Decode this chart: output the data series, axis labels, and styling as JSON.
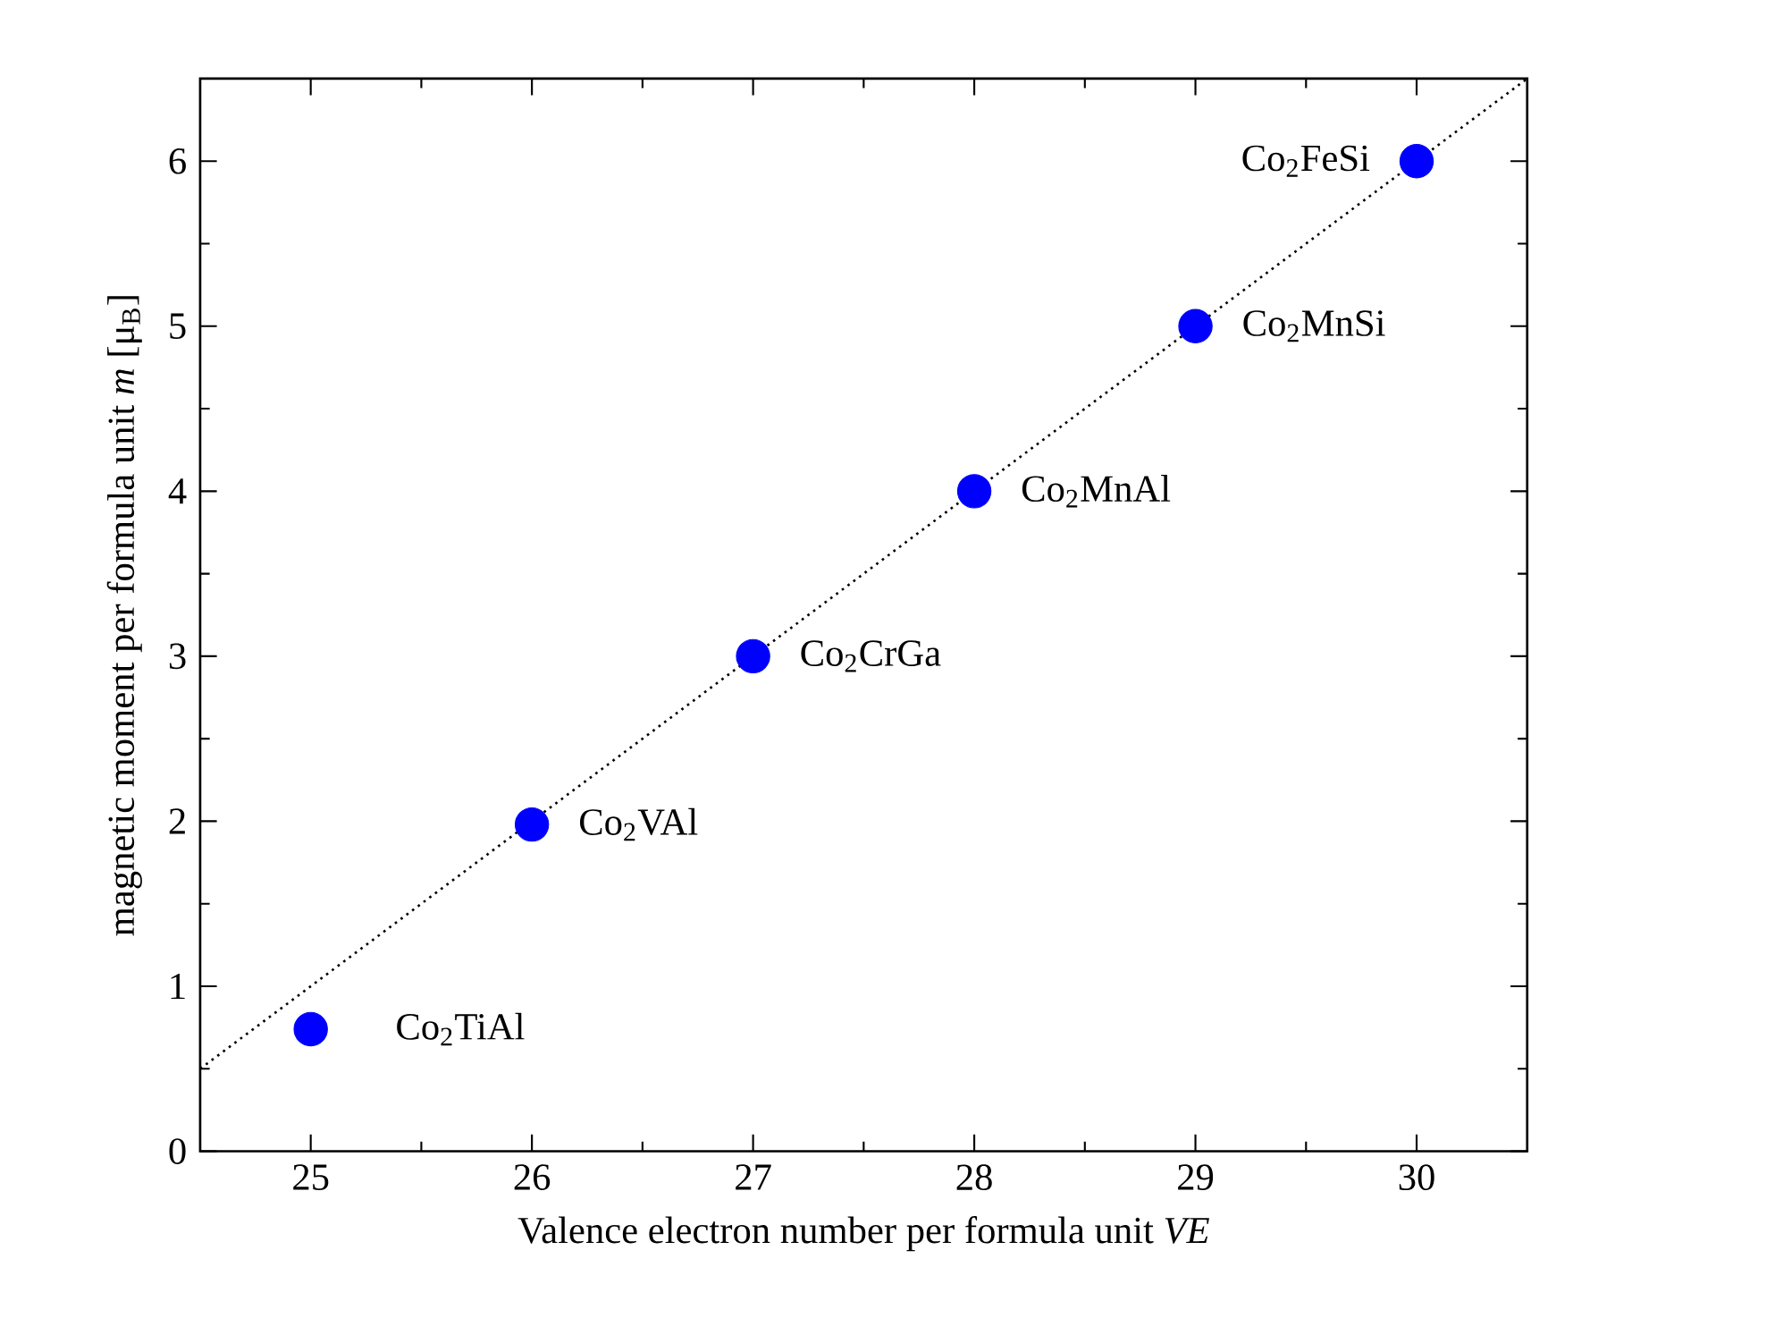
{
  "chart_data": {
    "type": "scatter",
    "xlabel": "Valence electron number per formula unit *VE*",
    "ylabel": "magnetic moment per formula unit *m* [μ$_{B}$]",
    "xlim": [
      24.5,
      30.5
    ],
    "ylim": [
      0,
      6.5
    ],
    "xticks": [
      25,
      26,
      27,
      28,
      29,
      30
    ],
    "yticks": [
      0,
      1,
      2,
      3,
      4,
      5,
      6
    ],
    "grid": false,
    "series": [
      {
        "color": "#0000ff",
        "marker": "circle",
        "x": [
          25,
          26,
          27,
          28,
          29,
          30
        ],
        "values": [
          0.74,
          1.98,
          3,
          4,
          5,
          6
        ]
      },
      {
        "type": "line",
        "color": "#000000",
        "marker": "none",
        "line_style": "dotted",
        "x": [
          24.5,
          30.5
        ],
        "values": [
          0.5,
          6.5
        ]
      }
    ],
    "annotations": [
      {
        "text": "Co$_{2}$TiAl",
        "x": 25,
        "y": 0.74
      },
      {
        "text": "Co$_{2}$VAl",
        "x": 26,
        "y": 1.98
      },
      {
        "text": "Co$_{2}$CrGa",
        "x": 27,
        "y": 3
      },
      {
        "text": "Co$_{2}$MnAl",
        "x": 28,
        "y": 4
      },
      {
        "text": "Co$_{2}$MnSi",
        "x": 29,
        "y": 5
      },
      {
        "text": "Co$_{2}$FeSi",
        "x": 30,
        "y": 6
      }
    ]
  }
}
